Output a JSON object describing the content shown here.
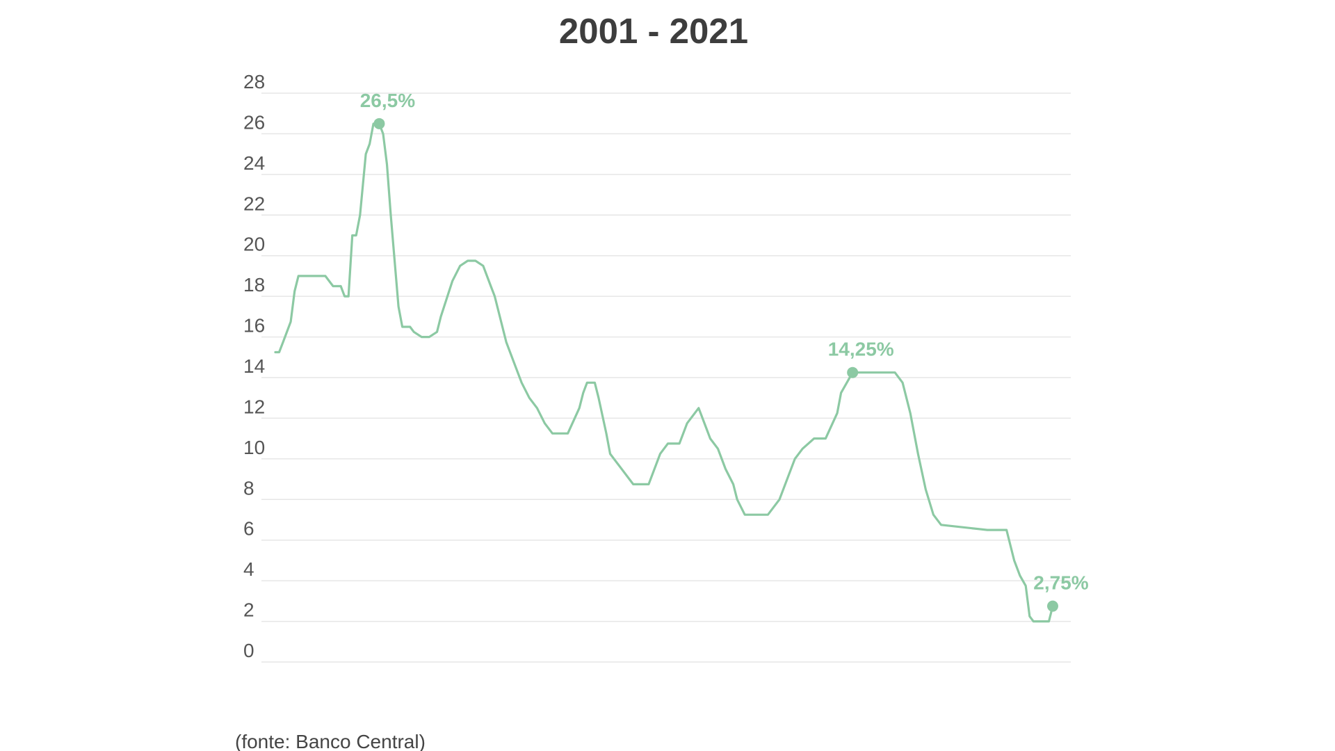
{
  "chart_data": {
    "type": "line",
    "title": "2001 - 2021",
    "xlabel": "",
    "ylabel": "",
    "xlim": [
      2001,
      2021.67
    ],
    "ylim": [
      0,
      28
    ],
    "yticks": [
      0,
      2,
      4,
      6,
      8,
      10,
      12,
      14,
      16,
      18,
      20,
      22,
      24,
      26,
      28
    ],
    "ytick_labels": [
      "0",
      "2",
      "4",
      "6",
      "8",
      "10",
      "12",
      "14",
      "16",
      "18",
      "20",
      "22",
      "24",
      "26",
      "28"
    ],
    "grid": true,
    "legend": "none",
    "series": [
      {
        "color": "#8cc9a3",
        "x": [
          2001.0,
          2001.1,
          2001.2,
          2001.4,
          2001.5,
          2001.6,
          2002.3,
          2002.5,
          2002.7,
          2002.8,
          2002.9,
          2003.0,
          2003.1,
          2003.2,
          2003.35,
          2003.45,
          2003.55,
          2003.7,
          2003.8,
          2003.9,
          2004.0,
          2004.2,
          2004.3,
          2004.5,
          2004.6,
          2004.8,
          2004.9,
          2005.0,
          2005.2,
          2005.3,
          2005.6,
          2005.8,
          2006.0,
          2006.2,
          2006.4,
          2006.6,
          2006.7,
          2007.0,
          2007.2,
          2007.4,
          2007.6,
          2007.8,
          2008.0,
          2008.2,
          2008.4,
          2008.6,
          2008.9,
          2009.0,
          2009.1,
          2009.3,
          2009.4,
          2009.6,
          2009.7,
          2010.3,
          2010.5,
          2010.7,
          2011.0,
          2011.2,
          2011.3,
          2011.5,
          2011.7,
          2012.0,
          2012.2,
          2012.3,
          2012.5,
          2012.7,
          2012.9,
          2013.0,
          2013.2,
          2013.4,
          2013.6,
          2013.8,
          2014.1,
          2014.3,
          2014.5,
          2014.7,
          2015.0,
          2015.3,
          2015.6,
          2015.7,
          2016.0,
          2016.7,
          2016.9,
          2017.1,
          2017.3,
          2017.5,
          2017.7,
          2017.9,
          2018.1,
          2018.3,
          2019.5,
          2019.6,
          2019.8,
          2020.0,
          2020.1,
          2020.2,
          2020.35,
          2020.5,
          2020.6,
          2020.7,
          2021.0,
          2021.1,
          2021.2
        ],
        "values": [
          15.25,
          15.25,
          15.75,
          16.75,
          18.25,
          19.0,
          19.0,
          18.5,
          18.5,
          18.0,
          18.0,
          21.0,
          21.0,
          22.0,
          25.0,
          25.5,
          26.5,
          26.5,
          26.0,
          24.5,
          22.0,
          17.5,
          16.5,
          16.5,
          16.25,
          16.0,
          16.0,
          16.0,
          16.25,
          17.0,
          18.75,
          19.5,
          19.75,
          19.75,
          19.5,
          18.5,
          18.0,
          15.75,
          14.75,
          13.75,
          13.0,
          12.5,
          11.75,
          11.25,
          11.25,
          11.25,
          12.5,
          13.25,
          13.75,
          13.75,
          13.0,
          11.25,
          10.25,
          8.75,
          8.75,
          8.75,
          10.25,
          10.75,
          10.75,
          10.75,
          11.75,
          12.5,
          11.5,
          11.0,
          10.5,
          9.5,
          8.75,
          8.0,
          7.25,
          7.25,
          7.25,
          7.25,
          8.0,
          9.0,
          10.0,
          10.5,
          11.0,
          11.0,
          12.25,
          13.25,
          14.25,
          14.25,
          14.25,
          14.25,
          13.75,
          12.25,
          10.25,
          8.5,
          7.25,
          6.75,
          6.5,
          6.5,
          6.5,
          6.5,
          5.75,
          5.0,
          4.25,
          3.75,
          2.25,
          2.0,
          2.0,
          2.0,
          2.75
        ]
      }
    ],
    "annotations": [
      {
        "x": 2003.7,
        "y": 26.5,
        "label": "26,5%"
      },
      {
        "x": 2016.0,
        "y": 14.25,
        "label": "14,25%"
      },
      {
        "x": 2021.2,
        "y": 2.75,
        "label": "2,75%"
      }
    ],
    "source": "(fonte: Banco Central)"
  }
}
